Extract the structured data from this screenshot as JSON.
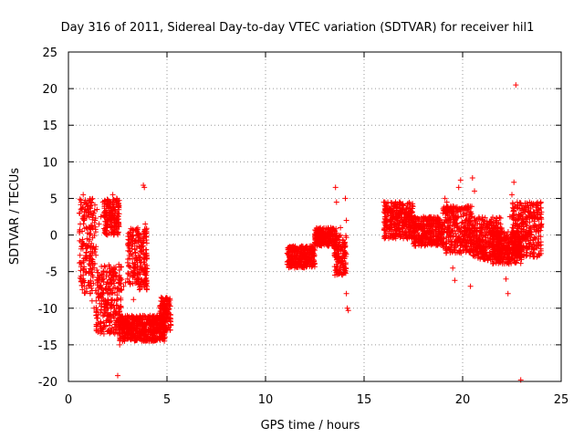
{
  "chart_data": {
    "type": "scatter",
    "title": "Day 316 of 2011, Sidereal Day-to-day VTEC variation (SDTVAR) for receiver hil1",
    "xlabel": "GPS time / hours",
    "ylabel": "SDTVAR / TECUs",
    "xlim": [
      0,
      25
    ],
    "ylim": [
      -20,
      25
    ],
    "xticks": [
      0,
      5,
      10,
      15,
      20,
      25
    ],
    "yticks": [
      -20,
      -15,
      -10,
      -5,
      0,
      5,
      10,
      15,
      20,
      25
    ],
    "grid": true,
    "marker": "+",
    "color": "#ff0000",
    "series": [
      {
        "name": "SDTVAR",
        "points": [
          [
            0.55,
            3.0
          ],
          [
            0.6,
            1.5
          ],
          [
            0.65,
            4.5
          ],
          [
            0.7,
            0.5
          ],
          [
            0.7,
            -1.5
          ],
          [
            0.75,
            5.5
          ],
          [
            0.75,
            -6.0
          ],
          [
            0.8,
            2.0
          ],
          [
            0.8,
            -7.0
          ],
          [
            0.85,
            3.5
          ],
          [
            0.9,
            -5.0
          ],
          [
            0.9,
            1.0
          ],
          [
            0.95,
            -0.5
          ],
          [
            1.0,
            4.0
          ],
          [
            1.0,
            -6.5
          ],
          [
            1.05,
            2.5
          ],
          [
            1.1,
            -8.0
          ],
          [
            1.1,
            1.0
          ],
          [
            1.15,
            4.5
          ],
          [
            1.2,
            -9.0
          ],
          [
            1.25,
            3.0
          ],
          [
            1.3,
            -10.0
          ],
          [
            1.35,
            2.0
          ],
          [
            1.4,
            -11.0
          ],
          [
            1.45,
            3.5
          ],
          [
            1.5,
            -12.0
          ],
          [
            1.55,
            1.5
          ],
          [
            1.6,
            -12.5
          ],
          [
            1.65,
            2.5
          ],
          [
            1.7,
            -13.0
          ],
          [
            1.75,
            4.5
          ],
          [
            1.8,
            -13.5
          ],
          [
            1.85,
            3.0
          ],
          [
            1.9,
            -12.5
          ],
          [
            1.95,
            1.0
          ],
          [
            2.0,
            -8.0
          ],
          [
            2.0,
            -11.0
          ],
          [
            2.05,
            3.0
          ],
          [
            2.1,
            -7.5
          ],
          [
            2.15,
            4.5
          ],
          [
            2.2,
            -6.5
          ],
          [
            2.25,
            5.5
          ],
          [
            2.3,
            -10.5
          ],
          [
            2.35,
            3.5
          ],
          [
            2.4,
            -12.0
          ],
          [
            2.45,
            5.0
          ],
          [
            2.5,
            -13.5
          ],
          [
            2.55,
            1.5
          ],
          [
            2.6,
            -15.0
          ],
          [
            2.5,
            -19.2
          ],
          [
            2.55,
            -11.5
          ],
          [
            2.6,
            -11.0
          ],
          [
            2.7,
            -11.5
          ],
          [
            2.8,
            -12.0
          ],
          [
            2.9,
            -12.5
          ],
          [
            3.0,
            -12.8
          ],
          [
            3.1,
            -13.0
          ],
          [
            3.2,
            -13.3
          ],
          [
            3.3,
            -13.5
          ],
          [
            3.4,
            -13.7
          ],
          [
            3.5,
            -13.9
          ],
          [
            3.6,
            -14.0
          ],
          [
            3.7,
            -14.1
          ],
          [
            3.8,
            -14.2
          ],
          [
            3.9,
            -14.3
          ],
          [
            4.0,
            -14.4
          ],
          [
            4.1,
            -14.5
          ],
          [
            4.2,
            -14.5
          ],
          [
            4.3,
            -14.5
          ],
          [
            4.4,
            -14.4
          ],
          [
            4.5,
            -14.3
          ],
          [
            4.6,
            -14.0
          ],
          [
            4.7,
            -13.6
          ],
          [
            4.8,
            -13.0
          ],
          [
            4.9,
            -12.3
          ],
          [
            5.0,
            -11.5
          ],
          [
            5.05,
            -10.5
          ],
          [
            5.1,
            -9.5
          ],
          [
            5.15,
            -8.7
          ],
          [
            2.7,
            -7.5
          ],
          [
            2.8,
            -7.0
          ],
          [
            2.9,
            -6.5
          ],
          [
            3.0,
            -6.0
          ],
          [
            3.1,
            -5.5
          ],
          [
            3.2,
            -5.0
          ],
          [
            3.3,
            -4.5
          ],
          [
            3.4,
            -4.0
          ],
          [
            3.5,
            -3.5
          ],
          [
            3.6,
            -3.0
          ],
          [
            3.7,
            -2.3
          ],
          [
            3.75,
            -1.5
          ],
          [
            3.8,
            -0.5
          ],
          [
            3.85,
            0.5
          ],
          [
            3.9,
            1.5
          ],
          [
            3.8,
            6.8
          ],
          [
            3.85,
            6.5
          ],
          [
            3.3,
            -8.8
          ],
          [
            3.9,
            -5.5
          ],
          [
            3.65,
            -0.5
          ],
          [
            3.55,
            0.3
          ],
          [
            11.1,
            -4.0
          ],
          [
            11.3,
            -4.2
          ],
          [
            11.5,
            -3.8
          ],
          [
            11.7,
            -3.5
          ],
          [
            11.9,
            -3.0
          ],
          [
            12.1,
            -2.5
          ],
          [
            12.3,
            -1.5
          ],
          [
            12.4,
            -2.2
          ],
          [
            12.5,
            -1.0
          ],
          [
            12.6,
            0.0
          ],
          [
            12.7,
            -0.5
          ],
          [
            12.8,
            0.5
          ],
          [
            12.9,
            -0.3
          ],
          [
            13.0,
            -1.0
          ],
          [
            13.1,
            -0.5
          ],
          [
            13.2,
            0.2
          ],
          [
            13.3,
            -0.8
          ],
          [
            13.4,
            -1.5
          ],
          [
            13.5,
            -2.5
          ],
          [
            13.55,
            6.5
          ],
          [
            13.6,
            4.5
          ],
          [
            13.6,
            -4.0
          ],
          [
            13.7,
            -2.0
          ],
          [
            13.8,
            1.0
          ],
          [
            13.9,
            -3.5
          ],
          [
            14.0,
            -1.0
          ],
          [
            14.05,
            5.0
          ],
          [
            14.1,
            2.0
          ],
          [
            14.1,
            -8.0
          ],
          [
            14.15,
            -10.0
          ],
          [
            14.2,
            -10.3
          ],
          [
            16.0,
            4.5
          ],
          [
            16.1,
            3.0
          ],
          [
            16.2,
            2.0
          ],
          [
            16.3,
            3.5
          ],
          [
            16.4,
            1.0
          ],
          [
            16.5,
            2.5
          ],
          [
            16.6,
            1.5
          ],
          [
            16.7,
            2.0
          ],
          [
            16.8,
            0.5
          ],
          [
            16.9,
            1.0
          ],
          [
            17.0,
            0.0
          ],
          [
            17.1,
            1.5
          ],
          [
            17.2,
            -0.5
          ],
          [
            17.3,
            0.8
          ],
          [
            17.4,
            2.0
          ],
          [
            17.5,
            0.5
          ],
          [
            17.6,
            -0.5
          ],
          [
            17.7,
            1.0
          ],
          [
            17.8,
            0.0
          ],
          [
            17.9,
            1.5
          ],
          [
            18.0,
            -0.5
          ],
          [
            18.2,
            1.5
          ],
          [
            18.4,
            0.5
          ],
          [
            18.6,
            -1.0
          ],
          [
            18.8,
            1.5
          ],
          [
            19.0,
            3.0
          ],
          [
            19.1,
            5.0
          ],
          [
            19.2,
            4.5
          ],
          [
            19.3,
            2.0
          ],
          [
            19.4,
            -2.0
          ],
          [
            19.5,
            -4.5
          ],
          [
            19.6,
            -6.2
          ],
          [
            19.7,
            1.5
          ],
          [
            19.8,
            6.5
          ],
          [
            19.9,
            7.5
          ],
          [
            20.0,
            3.5
          ],
          [
            20.1,
            1.0
          ],
          [
            20.2,
            -1.0
          ],
          [
            20.3,
            2.0
          ],
          [
            20.4,
            -7.0
          ],
          [
            20.5,
            7.8
          ],
          [
            20.6,
            6.0
          ],
          [
            20.7,
            0.5
          ],
          [
            20.8,
            -0.5
          ],
          [
            21.0,
            1.0
          ],
          [
            21.2,
            -1.0
          ],
          [
            21.4,
            0.0
          ],
          [
            21.6,
            -1.5
          ],
          [
            21.8,
            -0.5
          ],
          [
            22.0,
            0.5
          ],
          [
            22.1,
            -3.0
          ],
          [
            22.2,
            -6.0
          ],
          [
            22.3,
            -8.0
          ],
          [
            22.4,
            2.5
          ],
          [
            22.5,
            5.5
          ],
          [
            22.6,
            7.2
          ],
          [
            22.7,
            20.5
          ],
          [
            22.8,
            0.5
          ],
          [
            22.9,
            -2.5
          ],
          [
            22.95,
            -19.8
          ],
          [
            23.0,
            1.5
          ],
          [
            23.2,
            0.0
          ],
          [
            23.4,
            2.5
          ],
          [
            23.6,
            -2.0
          ],
          [
            23.8,
            4.0
          ],
          [
            24.0,
            1.5
          ]
        ],
        "bands": [
          [
            0.55,
            1.4,
            -8.0,
            5.0
          ],
          [
            1.4,
            2.7,
            -13.5,
            -4.0
          ],
          [
            1.8,
            2.6,
            0.0,
            5.0
          ],
          [
            2.6,
            4.9,
            -14.5,
            -11.0
          ],
          [
            3.0,
            4.0,
            -7.5,
            1.0
          ],
          [
            4.6,
            5.2,
            -13.0,
            -8.5
          ],
          [
            11.1,
            12.5,
            -4.5,
            -1.5
          ],
          [
            12.5,
            13.6,
            -1.5,
            1.0
          ],
          [
            13.5,
            14.1,
            -5.5,
            0.0
          ],
          [
            16.0,
            17.5,
            -0.5,
            4.5
          ],
          [
            17.5,
            19.0,
            -1.5,
            2.5
          ],
          [
            19.0,
            20.5,
            -2.5,
            4.0
          ],
          [
            20.5,
            22.0,
            -3.5,
            2.5
          ],
          [
            21.5,
            23.0,
            -4.0,
            0.5
          ],
          [
            22.5,
            24.0,
            -3.0,
            4.5
          ]
        ]
      }
    ]
  }
}
